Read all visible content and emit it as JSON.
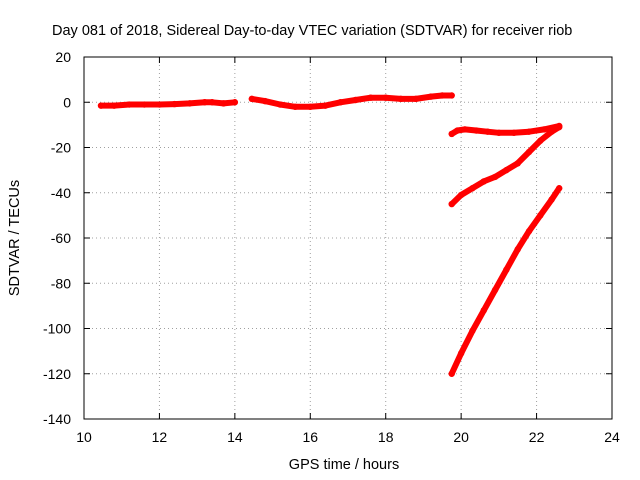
{
  "chart_data": {
    "type": "scatter",
    "title": "Day 081 of 2018, Sidereal Day-to-day VTEC variation (SDTVAR) for receiver riob",
    "xlabel": "GPS time / hours",
    "ylabel": "SDTVAR / TECUs",
    "xlim": [
      10,
      24
    ],
    "ylim": [
      -140,
      20
    ],
    "xticks": [
      "10",
      "12",
      "14",
      "16",
      "18",
      "20",
      "22",
      "24"
    ],
    "yticks": [
      "20",
      "0",
      "-20",
      "-40",
      "-60",
      "-80",
      "-100",
      "-120",
      "-140"
    ],
    "grid": true,
    "legend": "none",
    "series_color": "#ff0000",
    "series": [
      {
        "x": [
          10.45,
          10.8,
          11.2,
          11.6,
          12.0,
          12.4,
          12.8,
          13.2,
          13.4,
          13.7,
          14.0
        ],
        "y": [
          -1.5,
          -1.5,
          -1,
          -1,
          -1,
          -0.8,
          -0.5,
          0,
          0,
          -0.5,
          0
        ]
      },
      {
        "x": [
          14.45,
          14.8,
          15.2,
          15.6,
          16.0,
          16.4,
          16.8,
          17.2,
          17.6,
          18.0,
          18.4,
          18.8,
          19.2,
          19.5,
          19.75
        ],
        "y": [
          1.5,
          0.5,
          -1,
          -2,
          -2,
          -1.5,
          0,
          1,
          2,
          2,
          1.5,
          1.5,
          2.5,
          3,
          3
        ]
      },
      {
        "x": [
          19.75,
          19.9,
          20.1,
          20.4,
          20.7,
          21.0,
          21.4,
          21.8,
          22.2,
          22.6
        ],
        "y": [
          -14,
          -12.5,
          -12,
          -12.5,
          -13,
          -13.5,
          -13.5,
          -13,
          -12,
          -10.5
        ]
      },
      {
        "x": [
          19.75,
          20.0,
          20.3,
          20.6,
          20.9,
          21.2,
          21.5,
          21.8,
          22.1,
          22.4,
          22.6
        ],
        "y": [
          -45,
          -41,
          -38,
          -35,
          -33,
          -30,
          -27,
          -22,
          -17,
          -13,
          -11
        ]
      },
      {
        "x": [
          19.75,
          20.0,
          20.3,
          20.6,
          20.9,
          21.2,
          21.5,
          21.8,
          22.1,
          22.4,
          22.6
        ],
        "y": [
          -120,
          -111,
          -101,
          -92,
          -83,
          -74,
          -65,
          -57,
          -50,
          -43,
          -38
        ]
      }
    ]
  }
}
